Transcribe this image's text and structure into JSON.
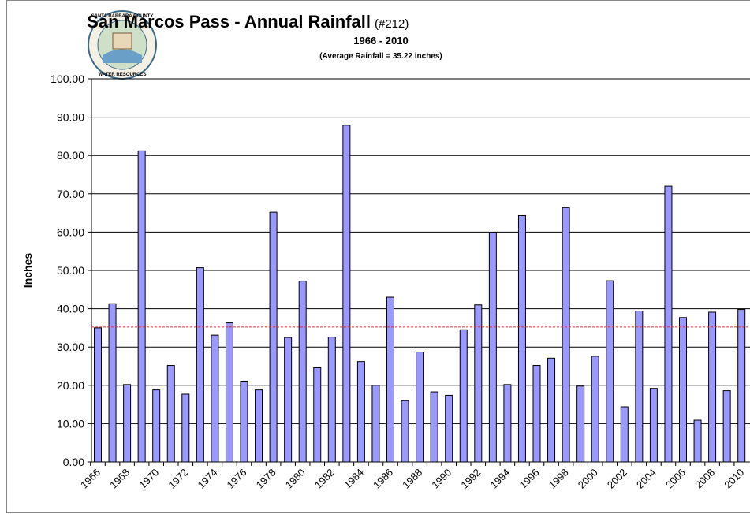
{
  "chart_data": {
    "type": "bar",
    "title": "San Marcos Pass - Annual Rainfall",
    "station": "(#212)",
    "subtitle": "1966 - 2010",
    "note": "(Average Rainfall = 35.22 inches)",
    "average": 35.22,
    "average_color": "#e03030",
    "logo_top": "SANTA BARBARA COUNTY",
    "logo_bottom": "WATER RESOURCES",
    "ylabel": "Inches",
    "color": "#9999ff",
    "grid": true,
    "categories": [
      "1966",
      null,
      "1968",
      null,
      "1970",
      null,
      "1972",
      null,
      "1974",
      null,
      "1976",
      null,
      "1978",
      null,
      "1980",
      null,
      "1982",
      null,
      "1984",
      null,
      "1986",
      null,
      "1988",
      null,
      "1990",
      null,
      "1992",
      null,
      "1994",
      null,
      "1996",
      null,
      "1998",
      null,
      "2000",
      null,
      "2002",
      null,
      "2004",
      null,
      "2006",
      null,
      "2008",
      null,
      "2010"
    ],
    "values": [
      35,
      41.3,
      20.2,
      81.2,
      18.8,
      25.2,
      17.7,
      50.7,
      33.1,
      36.3,
      21.1,
      18.8,
      65.2,
      32.5,
      47.2,
      24.6,
      32.6,
      87.9,
      26.2,
      20,
      43,
      16,
      28.7,
      18.3,
      17.4,
      34.5,
      41,
      59.9,
      20.2,
      64.3,
      25.2,
      27.1,
      66.4,
      19.8,
      27.6,
      47.3,
      14.4,
      39.4,
      19.2,
      72,
      37.7,
      10.9,
      39.1,
      18.6,
      39.8
    ],
    "ylim": [
      0,
      100
    ],
    "yticks": [
      {
        "value": 0,
        "label": "0.00"
      },
      {
        "value": 10,
        "label": "10.00"
      },
      {
        "value": 20,
        "label": "20.00"
      },
      {
        "value": 30,
        "label": "30.00"
      },
      {
        "value": 40,
        "label": "40.00"
      },
      {
        "value": 50,
        "label": "50.00"
      },
      {
        "value": 60,
        "label": "60.00"
      },
      {
        "value": 70,
        "label": "70.00"
      },
      {
        "value": 80,
        "label": "80.00"
      },
      {
        "value": 90,
        "label": "90.00"
      },
      {
        "value": 100,
        "label": "100.00"
      }
    ]
  }
}
